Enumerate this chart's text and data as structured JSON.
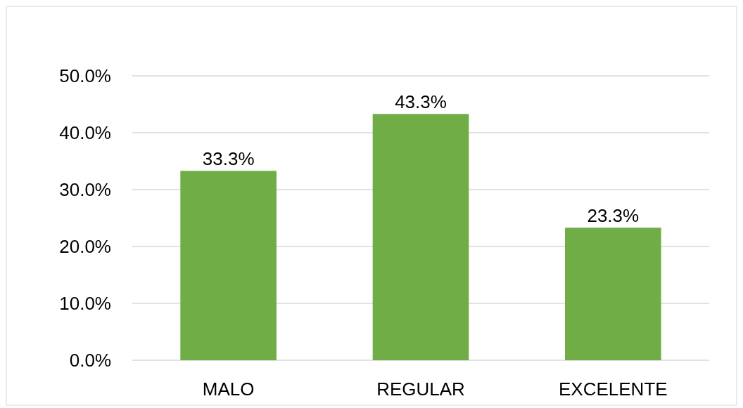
{
  "chart_data": {
    "type": "bar",
    "categories": [
      "MALO",
      "REGULAR",
      "EXCELENTE"
    ],
    "values": [
      33.3,
      43.3,
      23.3
    ],
    "color": "#70ad47",
    "value_labels": [
      "33.3%",
      "43.3%",
      "23.3%"
    ],
    "ylim": [
      0,
      50
    ],
    "yticks": [
      {
        "value": 0,
        "label": "0.0%"
      },
      {
        "value": 10,
        "label": "10.0%"
      },
      {
        "value": 20,
        "label": "20.0%"
      },
      {
        "value": 30,
        "label": "30.0%"
      },
      {
        "value": 40,
        "label": "40.0%"
      },
      {
        "value": 50,
        "label": "50.0%"
      }
    ],
    "grid": "y"
  }
}
